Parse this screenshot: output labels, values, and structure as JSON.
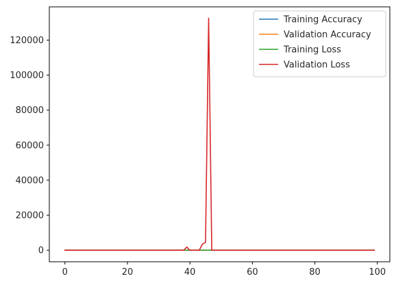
{
  "chart_data": {
    "type": "line",
    "title": "",
    "xlabel": "",
    "ylabel": "",
    "xlim": [
      -5,
      104
    ],
    "ylim": [
      -6600,
      139000
    ],
    "xticks": [
      0,
      20,
      40,
      60,
      80,
      100
    ],
    "yticks": [
      0,
      20000,
      40000,
      60000,
      80000,
      100000,
      120000
    ],
    "grid": false,
    "legend_position": "top-right",
    "series": [
      {
        "name": "Training Accuracy",
        "color": "#1f77b4",
        "x_range": [
          0,
          99
        ],
        "values": "near-zero",
        "points": [
          [
            0,
            0.5
          ],
          [
            99,
            0.9
          ]
        ]
      },
      {
        "name": "Validation Accuracy",
        "color": "#ff7f0e",
        "x_range": [
          0,
          99
        ],
        "values": "near-zero",
        "points": [
          [
            0,
            0.5
          ],
          [
            99,
            0.9
          ]
        ]
      },
      {
        "name": "Training Loss",
        "color": "#2ca02c",
        "x_range": [
          0,
          99
        ],
        "values": "near-zero",
        "points": [
          [
            0,
            1
          ],
          [
            99,
            0.5
          ]
        ]
      },
      {
        "name": "Validation Loss",
        "color": "#d62728",
        "x_range": [
          0,
          99
        ],
        "points": [
          [
            0,
            0
          ],
          [
            38,
            0
          ],
          [
            39,
            1800
          ],
          [
            40,
            0
          ],
          [
            43,
            0
          ],
          [
            44,
            3500
          ],
          [
            45,
            4500
          ],
          [
            46,
            132500
          ],
          [
            47,
            0
          ],
          [
            99,
            0
          ]
        ]
      }
    ]
  }
}
